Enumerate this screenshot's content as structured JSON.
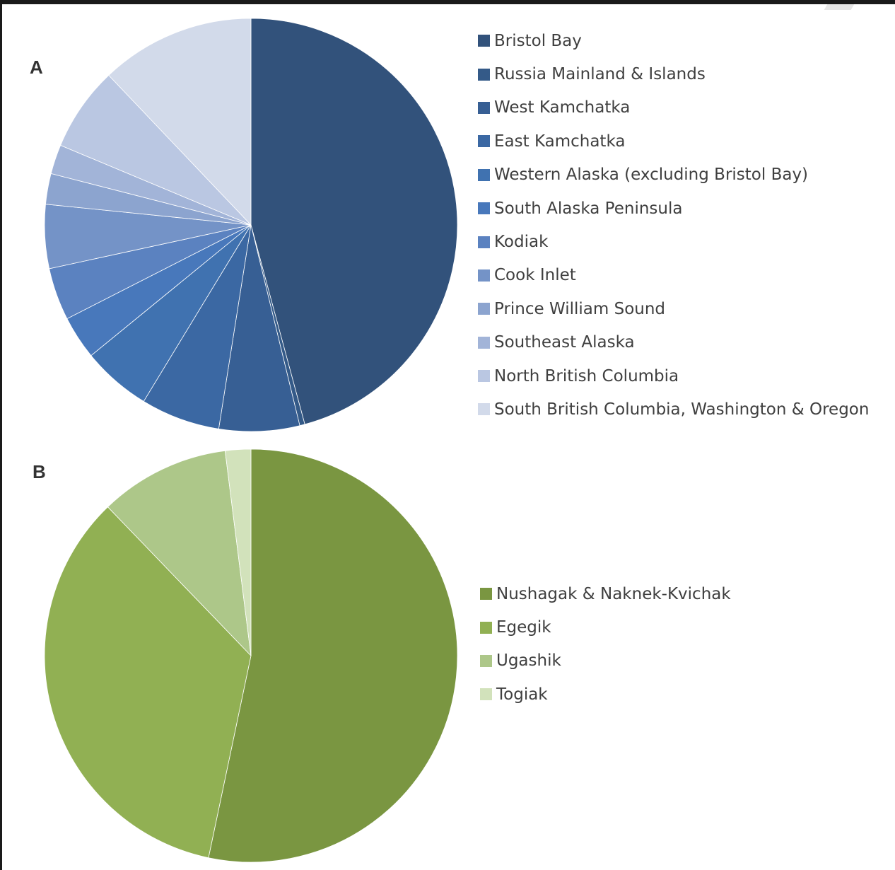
{
  "panels": {
    "a": "A",
    "b": "B"
  },
  "chart_data": [
    {
      "type": "pie",
      "panel": "A",
      "categories": [
        "Bristol Bay",
        "Russia Mainland & Islands",
        "West Kamchatka",
        "East Kamchatka",
        "Western Alaska (excluding Bristol Bay)",
        "South Alaska Peninsula",
        "Kodiak",
        "Cook Inlet",
        "Prince William Sound",
        "Southeast Alaska",
        "North British Columbia",
        "South British Columbia, Washington & Oregon"
      ],
      "values": [
        45.8,
        0.4,
        6.3,
        6.2,
        5.4,
        3.4,
        4.1,
        5.0,
        2.4,
        2.3,
        6.6,
        12.1
      ],
      "colors": [
        "#32527b",
        "#345a88",
        "#375f94",
        "#3b68a3",
        "#4072b0",
        "#4878bb",
        "#5b82c0",
        "#7493c7",
        "#8ca4cf",
        "#a2b4d8",
        "#bac7e2",
        "#d2daea"
      ],
      "legend_position": "right",
      "start_angle_deg": 0,
      "direction": "clockwise"
    },
    {
      "type": "pie",
      "panel": "B",
      "categories": [
        "Nushagak & Naknek-Kvichak",
        "Egegik",
        "Ugashik",
        "Togiak"
      ],
      "values": [
        53.3,
        34.5,
        10.2,
        2.0
      ],
      "colors": [
        "#7a9641",
        "#91b053",
        "#adc789",
        "#d2e2bb"
      ],
      "legend_position": "right",
      "start_angle_deg": 0,
      "direction": "clockwise"
    }
  ]
}
